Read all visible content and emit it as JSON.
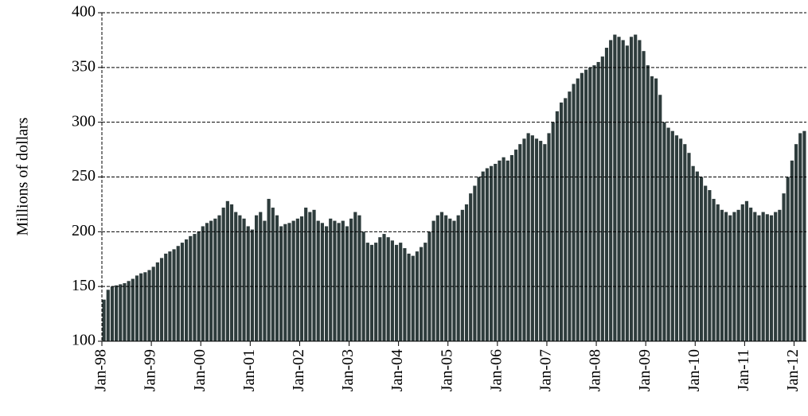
{
  "chart_data": {
    "type": "bar",
    "y_label": "Millions of dollars",
    "color": "#2e3c3c",
    "ylim": [
      100,
      400
    ],
    "yticks": [
      100,
      150,
      200,
      250,
      300,
      350,
      400
    ],
    "grid": true,
    "categories": [
      "Jan-98",
      null,
      null,
      null,
      null,
      null,
      null,
      null,
      null,
      null,
      null,
      null,
      "Jan-99",
      null,
      null,
      null,
      null,
      null,
      null,
      null,
      null,
      null,
      null,
      null,
      "Jan-00",
      null,
      null,
      null,
      null,
      null,
      null,
      null,
      null,
      null,
      null,
      null,
      "Jan-01",
      null,
      null,
      null,
      null,
      null,
      null,
      null,
      null,
      null,
      null,
      null,
      "Jan-02",
      null,
      null,
      null,
      null,
      null,
      null,
      null,
      null,
      null,
      null,
      null,
      "Jan-03",
      null,
      null,
      null,
      null,
      null,
      null,
      null,
      null,
      null,
      null,
      null,
      "Jan-04",
      null,
      null,
      null,
      null,
      null,
      null,
      null,
      null,
      null,
      null,
      null,
      "Jan-05",
      null,
      null,
      null,
      null,
      null,
      null,
      null,
      null,
      null,
      null,
      null,
      "Jan-06",
      null,
      null,
      null,
      null,
      null,
      null,
      null,
      null,
      null,
      null,
      null,
      "Jan-07",
      null,
      null,
      null,
      null,
      null,
      null,
      null,
      null,
      null,
      null,
      null,
      "Jan-08",
      null,
      null,
      null,
      null,
      null,
      null,
      null,
      null,
      null,
      null,
      null,
      "Jan-09",
      null,
      null,
      null,
      null,
      null,
      null,
      null,
      null,
      null,
      null,
      null,
      "Jan-10",
      null,
      null,
      null,
      null,
      null,
      null,
      null,
      null,
      null,
      null,
      null,
      "Jan-11",
      null,
      null,
      null,
      null,
      null,
      null,
      null,
      null,
      null,
      null,
      null,
      "Jan-12",
      null,
      null
    ],
    "values": [
      138,
      147,
      150,
      151,
      152,
      153,
      155,
      157,
      160,
      162,
      163,
      165,
      168,
      172,
      176,
      180,
      182,
      184,
      187,
      190,
      193,
      196,
      198,
      200,
      205,
      208,
      210,
      212,
      215,
      222,
      228,
      225,
      218,
      215,
      212,
      205,
      202,
      215,
      218,
      210,
      230,
      222,
      215,
      205,
      207,
      208,
      210,
      212,
      214,
      222,
      218,
      220,
      210,
      208,
      205,
      212,
      210,
      208,
      210,
      205,
      212,
      218,
      215,
      200,
      190,
      188,
      190,
      195,
      198,
      195,
      192,
      188,
      190,
      185,
      180,
      178,
      182,
      186,
      190,
      200,
      210,
      215,
      218,
      215,
      212,
      210,
      215,
      220,
      225,
      235,
      242,
      250,
      255,
      258,
      260,
      262,
      265,
      268,
      265,
      270,
      275,
      280,
      285,
      290,
      288,
      285,
      283,
      280,
      290,
      300,
      310,
      318,
      322,
      328,
      335,
      340,
      345,
      348,
      350,
      352,
      355,
      360,
      368,
      375,
      380,
      378,
      375,
      370,
      378,
      380,
      375,
      365,
      352,
      342,
      340,
      325,
      300,
      295,
      292,
      288,
      285,
      280,
      272,
      260,
      255,
      250,
      242,
      238,
      230,
      225,
      220,
      218,
      215,
      218,
      220,
      225,
      228,
      222,
      218,
      215,
      218,
      216,
      215,
      218,
      220,
      235,
      250,
      265,
      280,
      290,
      292
    ]
  }
}
